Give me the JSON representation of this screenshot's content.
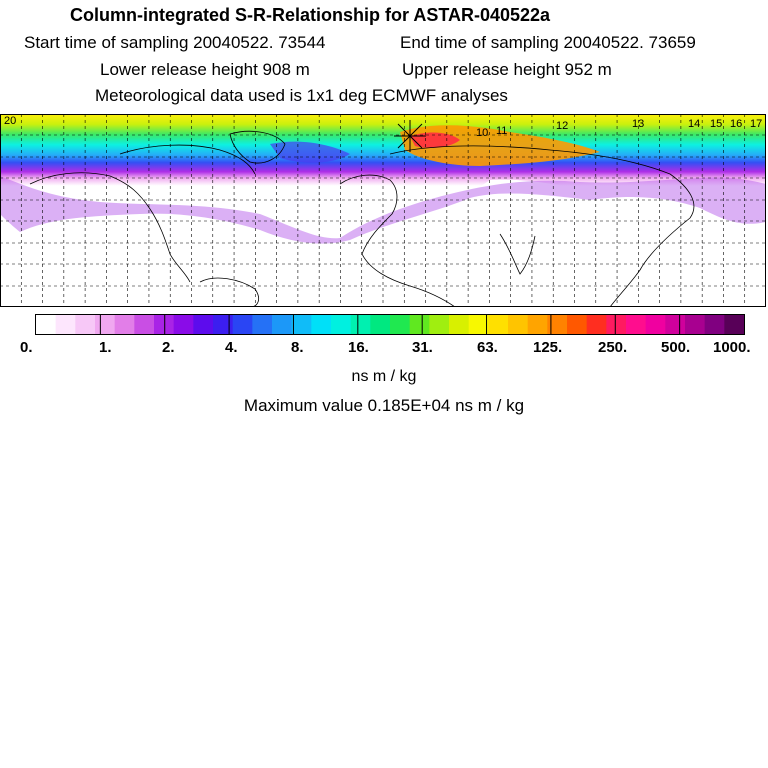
{
  "header": {
    "title": "Column-integrated S-R-Relationship for ASTAR-040522a",
    "start": "Start time of sampling 20040522. 73544",
    "end": "End time of sampling 20040522. 73659",
    "lower": "Lower release height  908 m",
    "upper": "Upper release height  952 m",
    "met": "Meteorological data used is 1x1 deg ECMWF analyses"
  },
  "map": {
    "day_markers": [
      "20",
      "12",
      "13",
      "14",
      "15",
      "16",
      "17",
      "10",
      "11"
    ]
  },
  "legend": {
    "tick_labels": [
      "0.",
      "1.",
      "2.",
      "4.",
      "8.",
      "16.",
      "31.",
      "63.",
      "125.",
      "250.",
      "500.",
      "1000."
    ],
    "colors": [
      "#ffffff",
      "#fde6fd",
      "#f7c8f7",
      "#f0a8f0",
      "#e27ee8",
      "#c94ee4",
      "#a923e6",
      "#8a0ce8",
      "#5d0ced",
      "#3c1ef0",
      "#2a45f4",
      "#2571f6",
      "#1c98f8",
      "#10bcf8",
      "#00e0f8",
      "#00f0e0",
      "#00f0b0",
      "#00e880",
      "#20e850",
      "#60e820",
      "#a0ee10",
      "#d8f000",
      "#f8f800",
      "#ffe000",
      "#ffc400",
      "#ffa400",
      "#ff8200",
      "#ff5800",
      "#ff2e20",
      "#ff1a60",
      "#ff0d8e",
      "#f000a0",
      "#d0009c",
      "#a80090",
      "#800080",
      "#580058"
    ],
    "units": "ns m / kg"
  },
  "max_value": "Maximum value  0.185E+04 ns m / kg"
}
